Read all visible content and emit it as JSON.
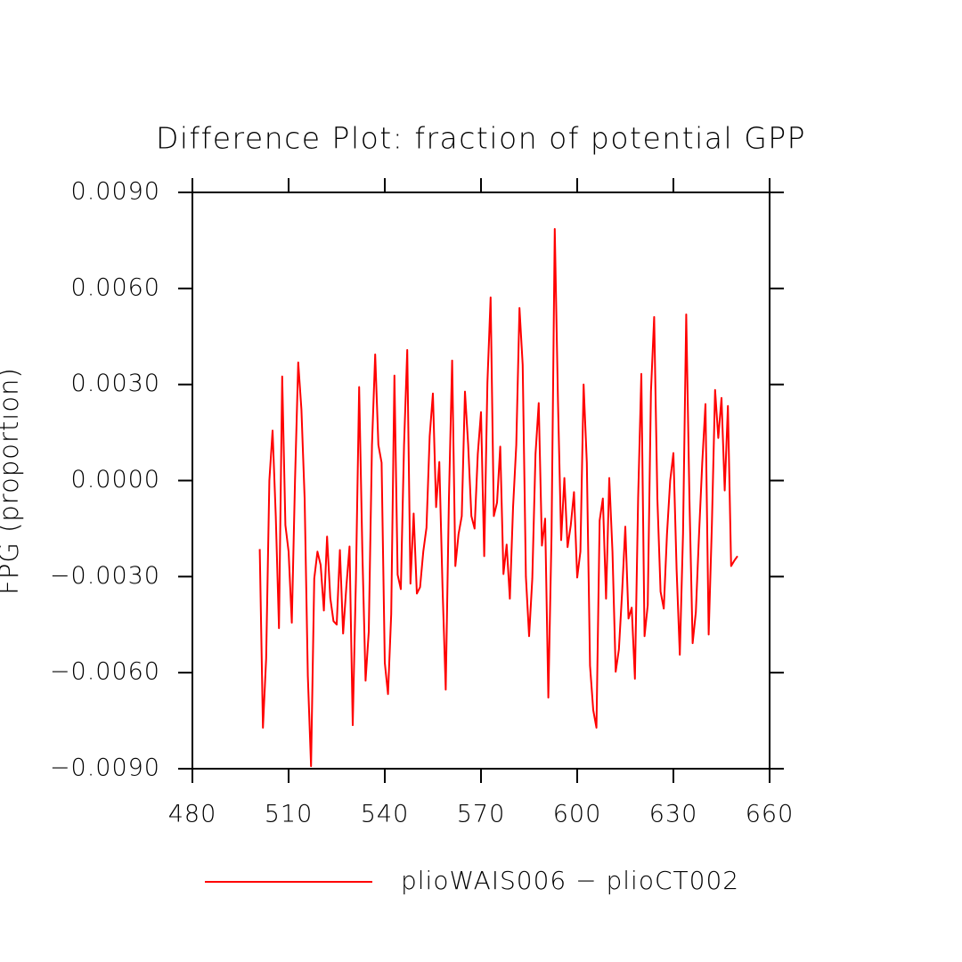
{
  "chart_data": {
    "type": "line",
    "title": "Difference Plot: fraction of potential GPP",
    "ylabel": "FPG  (proportion)",
    "xlim": [
      480,
      660
    ],
    "xticks": [
      480,
      510,
      540,
      570,
      600,
      630,
      660
    ],
    "ylim": [
      -0.009,
      0.009
    ],
    "yticks": [
      {
        "value": -0.009,
        "label": "−0.0090"
      },
      {
        "value": -0.006,
        "label": "−0.0060"
      },
      {
        "value": -0.003,
        "label": "−0.0030"
      },
      {
        "value": 0,
        "label": "0.0000"
      },
      {
        "value": 0.003,
        "label": "0.0030"
      },
      {
        "value": 0.006,
        "label": "0.0060"
      },
      {
        "value": 0.009,
        "label": "0.0090"
      }
    ],
    "x": [
      501,
      502,
      503,
      504,
      505,
      506,
      507,
      508,
      509,
      510,
      511,
      512,
      513,
      514,
      515,
      516,
      517,
      518,
      519,
      520,
      521,
      522,
      523,
      524,
      525,
      526,
      527,
      528,
      529,
      530,
      531,
      532,
      533,
      534,
      535,
      536,
      537,
      538,
      539,
      540,
      541,
      542,
      543,
      544,
      545,
      546,
      547,
      548,
      549,
      550,
      551,
      552,
      553,
      554,
      555,
      556,
      557,
      558,
      559,
      560,
      561,
      562,
      563,
      564,
      565,
      566,
      567,
      568,
      569,
      570,
      571,
      572,
      573,
      574,
      575,
      576,
      577,
      578,
      579,
      580,
      581,
      582,
      583,
      584,
      585,
      586,
      587,
      588,
      589,
      590,
      591,
      592,
      593,
      594,
      595,
      596,
      597,
      598,
      599,
      600,
      601,
      602,
      603,
      604,
      605,
      606,
      607,
      608,
      609,
      610,
      611,
      612,
      613,
      614,
      615,
      616,
      617,
      618,
      619,
      620,
      621,
      622,
      623,
      624,
      625,
      626,
      627,
      628,
      629,
      630,
      631,
      632,
      633,
      634,
      635,
      636,
      637,
      638,
      639,
      640,
      641,
      642,
      643,
      644,
      645,
      646,
      647,
      648,
      649,
      650
    ],
    "series": [
      {
        "name": "plioWAIS006 − plioCT002",
        "color": "#ff0000",
        "values": [
          -0.00214,
          -0.00772,
          -0.00556,
          0,
          0.00156,
          -0.00111,
          -0.00461,
          0.00325,
          -0.00139,
          -0.00222,
          -0.00444,
          0,
          0.00369,
          0.00222,
          -0.00056,
          -0.00611,
          -0.00892,
          -0.00306,
          -0.00222,
          -0.00264,
          -0.00406,
          -0.00175,
          -0.00367,
          -0.00439,
          -0.0045,
          -0.00217,
          -0.00478,
          -0.00333,
          -0.00206,
          -0.00764,
          -0.00306,
          0.00292,
          -0.00222,
          -0.00625,
          -0.00472,
          0.00111,
          0.00394,
          0.00111,
          0.00056,
          -0.00569,
          -0.00667,
          -0.00417,
          0.00328,
          -0.00294,
          -0.00339,
          0.00111,
          0.00408,
          -0.00322,
          -0.00103,
          -0.00353,
          -0.00333,
          -0.00222,
          -0.00147,
          0.00139,
          0.00272,
          -0.00083,
          0.00058,
          -0.00333,
          -0.00653,
          -0.00056,
          0.00375,
          -0.00267,
          -0.00167,
          -0.00111,
          0.00278,
          0.00111,
          -0.00111,
          -0.0015,
          0.00083,
          0.00214,
          -0.00236,
          0.00306,
          0.00572,
          -0.00111,
          -0.00069,
          0.00106,
          -0.00292,
          -0.002,
          -0.00369,
          -0.00083,
          0.00111,
          0.00539,
          0.00361,
          -0.003,
          -0.00486,
          -0.00306,
          0.00083,
          0.00242,
          -0.00203,
          -0.00119,
          -0.00678,
          -0.00167,
          0.00786,
          0.0025,
          -0.00186,
          8e-05,
          -0.00208,
          -0.00139,
          -0.00036,
          -0.00303,
          -0.00222,
          0.003,
          0.00056,
          -0.00578,
          -0.00717,
          -0.00772,
          -0.00125,
          -0.00056,
          -0.00369,
          8e-05,
          -0.00222,
          -0.00597,
          -0.00528,
          -0.0035,
          -0.00144,
          -0.00431,
          -0.00397,
          -0.00619,
          -0.00056,
          0.00333,
          -0.00486,
          -0.00389,
          0.00278,
          0.00511,
          -0.00056,
          -0.00347,
          -0.004,
          -0.00167,
          0,
          0.00086,
          -0.00278,
          -0.00544,
          -0.00167,
          0.00519,
          -0.00056,
          -0.00508,
          -0.00411,
          -0.00167,
          0.00056,
          0.00239,
          -0.00481,
          -0.00139,
          0.00283,
          0.00133,
          0.00258,
          -0.00031,
          0.00233,
          -0.00267,
          -0.0025,
          -0.00236
        ]
      }
    ]
  }
}
